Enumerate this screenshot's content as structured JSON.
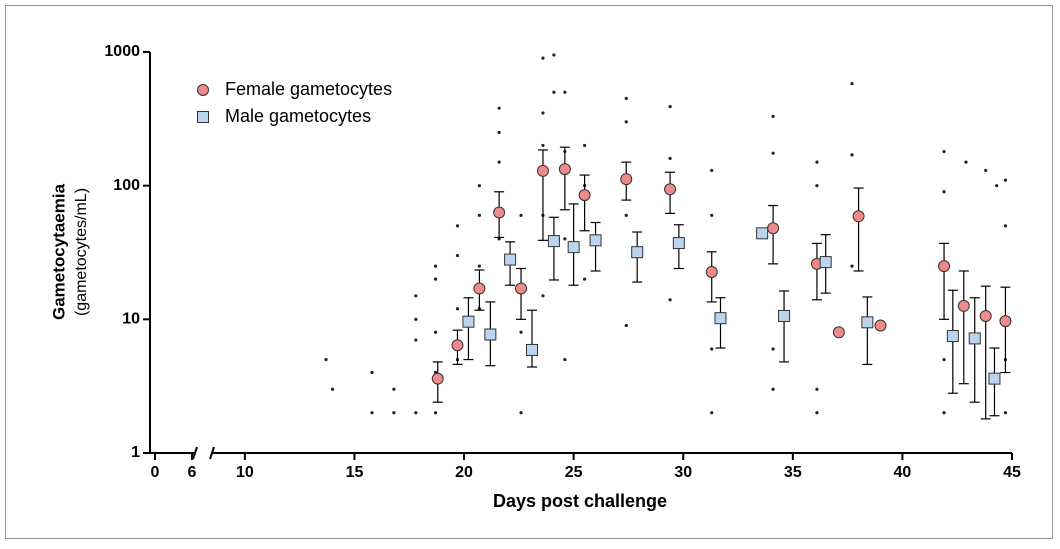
{
  "chart_data": {
    "type": "scatter",
    "xlabel": "Days post challenge",
    "ylabel": "Gametocytaemia",
    "ylabel_unit": "(gametocytes/mL)",
    "log_y": true,
    "xlim": [
      0,
      45
    ],
    "xbreak": [
      6,
      8.5
    ],
    "xticks": [
      0,
      6,
      10,
      15,
      20,
      25,
      30,
      35,
      40,
      45
    ],
    "ylim": [
      1,
      1000
    ],
    "yticks": [
      1,
      10,
      100,
      1000
    ],
    "legend": "top-left",
    "series": [
      {
        "name": "Female gametocytes",
        "color": "#ef8a8a",
        "marker": "circle",
        "x": [
          18.8,
          19.7,
          20.7,
          21.6,
          22.6,
          23.6,
          24.6,
          25.5,
          27.4,
          29.4,
          31.3,
          34.1,
          36.1,
          37.1,
          38.0,
          39.0,
          41.9,
          42.8,
          43.8,
          44.7
        ],
        "values": [
          3.6,
          6.4,
          17,
          63,
          17,
          129,
          133,
          85,
          112,
          94,
          22.6,
          48,
          26,
          8.0,
          59,
          9.0,
          25,
          12.6,
          10.6,
          9.7
        ],
        "error_low": [
          2.4,
          4.6,
          11.7,
          41,
          10,
          39,
          66,
          46,
          78,
          62,
          13.5,
          26,
          14,
          null,
          23,
          null,
          10,
          3.3,
          1.8,
          4.0
        ],
        "error_high": [
          4.8,
          8.3,
          23.4,
          90,
          24,
          185,
          194,
          120,
          150,
          126,
          32,
          71,
          37,
          null,
          96,
          null,
          37,
          23,
          17.7,
          17.4
        ]
      },
      {
        "name": "Male gametocytes",
        "color": "#bcd4ee",
        "marker": "square",
        "x": [
          20.2,
          21.2,
          22.1,
          23.1,
          24.1,
          25.0,
          26.0,
          27.9,
          29.8,
          31.7,
          33.6,
          34.6,
          36.5,
          38.4,
          42.3,
          43.3,
          44.2
        ],
        "values": [
          9.6,
          7.7,
          28,
          5.9,
          38.5,
          34.7,
          39,
          31.8,
          37.2,
          10.2,
          44,
          10.6,
          26.8,
          9.5,
          7.5,
          7.2,
          3.6
        ],
        "error_low": [
          5.0,
          4.5,
          18,
          4.4,
          19.7,
          18,
          23,
          19,
          24,
          6.1,
          null,
          4.8,
          15.7,
          4.6,
          2.8,
          2.4,
          1.9
        ],
        "error_high": [
          14.5,
          13.5,
          38,
          11.7,
          58,
          73,
          53,
          45,
          51,
          14.5,
          null,
          16.3,
          43,
          14.7,
          16.5,
          14.5,
          6.1
        ]
      }
    ],
    "points": {
      "x": [
        13.7,
        14,
        15.8,
        15.8,
        16.8,
        16.8,
        17.8,
        17.8,
        17.8,
        17.8,
        18.7,
        18.7,
        18.7,
        18.7,
        18.7,
        19.7,
        19.7,
        19.7,
        19.7,
        20.7,
        20.7,
        20.7,
        20.7,
        21.6,
        21.6,
        21.6,
        21.6,
        22.6,
        22.6,
        22.6,
        23.6,
        23.6,
        23.6,
        23.6,
        23.6,
        24.1,
        24.1,
        24.6,
        24.6,
        24.6,
        24.6,
        25.5,
        25.5,
        25.5,
        27.4,
        27.4,
        27.4,
        27.4,
        29.4,
        29.4,
        29.4,
        31.3,
        31.3,
        31.3,
        31.3,
        34.1,
        34.1,
        34.1,
        34.1,
        36.1,
        36.1,
        36.1,
        36.1,
        37.7,
        37.7,
        37.7,
        41.9,
        41.9,
        41.9,
        41.9,
        42.9,
        43.8,
        44.3,
        44.7,
        44.7,
        44.7,
        44.7
      ],
      "y": [
        5,
        3,
        4,
        2,
        2,
        3,
        15,
        10,
        7,
        2,
        25,
        20,
        8,
        4,
        2,
        50,
        30,
        12,
        5,
        100,
        60,
        25,
        12,
        380,
        250,
        150,
        40,
        60,
        8,
        2,
        900,
        350,
        200,
        60,
        15,
        950,
        500,
        500,
        180,
        40,
        5,
        200,
        100,
        20,
        450,
        300,
        60,
        9,
        390,
        160,
        14,
        130,
        60,
        6,
        2,
        330,
        175,
        6,
        3,
        150,
        100,
        3,
        2,
        580,
        170,
        25,
        180,
        90,
        5,
        2,
        150,
        130,
        100,
        110,
        50,
        5,
        2
      ]
    }
  }
}
